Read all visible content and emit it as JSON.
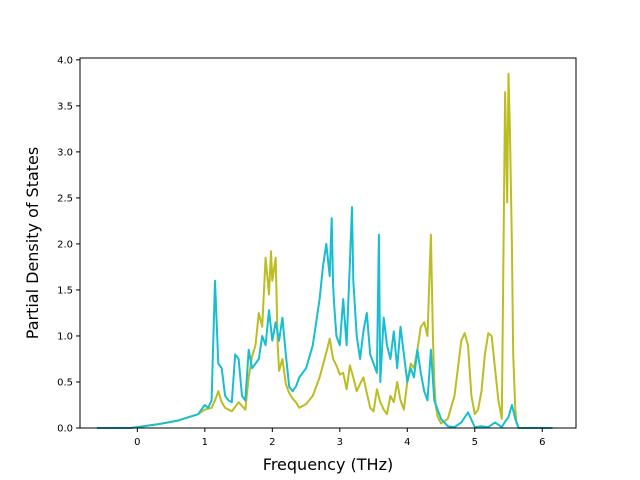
{
  "chart_data": {
    "type": "line",
    "title": "",
    "xlabel": "Frequency (THz)",
    "ylabel": "Partial Density of States",
    "xlim": [
      -0.85,
      6.5
    ],
    "ylim": [
      0.0,
      4.02
    ],
    "x_ticks": [
      0,
      1,
      2,
      3,
      4,
      5,
      6
    ],
    "y_ticks": [
      0.0,
      0.5,
      1.0,
      1.5,
      2.0,
      2.5,
      3.0,
      3.5,
      4.0
    ],
    "x_tick_labels": [
      "0",
      "1",
      "2",
      "3",
      "4",
      "5",
      "6"
    ],
    "y_tick_labels": [
      "0.0",
      "0.5",
      "1.0",
      "1.5",
      "2.0",
      "2.5",
      "3.0",
      "3.5",
      "4.0"
    ],
    "grid": false,
    "legend": "none",
    "series": [
      {
        "color": "#bcbd22",
        "x": [
          -0.6,
          -0.1,
          0.0,
          0.3,
          0.6,
          0.9,
          1.0,
          1.1,
          1.15,
          1.2,
          1.25,
          1.3,
          1.4,
          1.5,
          1.6,
          1.65,
          1.7,
          1.75,
          1.8,
          1.85,
          1.9,
          1.95,
          1.98,
          2.0,
          2.05,
          2.08,
          2.1,
          2.15,
          2.2,
          2.25,
          2.3,
          2.35,
          2.4,
          2.5,
          2.6,
          2.7,
          2.75,
          2.8,
          2.85,
          2.9,
          2.95,
          3.0,
          3.05,
          3.1,
          3.15,
          3.2,
          3.25,
          3.3,
          3.35,
          3.4,
          3.45,
          3.5,
          3.55,
          3.6,
          3.65,
          3.7,
          3.75,
          3.8,
          3.85,
          3.9,
          3.95,
          4.0,
          4.05,
          4.1,
          4.15,
          4.2,
          4.25,
          4.3,
          4.35,
          4.38,
          4.4,
          4.42,
          4.45,
          4.5,
          4.6,
          4.7,
          4.8,
          4.85,
          4.9,
          4.95,
          5.0,
          5.05,
          5.1,
          5.15,
          5.2,
          5.25,
          5.3,
          5.35,
          5.4,
          5.45,
          5.48,
          5.5,
          5.52,
          5.55,
          5.57,
          5.6,
          5.62,
          5.65,
          6.15
        ],
        "y": [
          0.0,
          0.0,
          0.01,
          0.04,
          0.08,
          0.15,
          0.2,
          0.22,
          0.3,
          0.4,
          0.28,
          0.22,
          0.18,
          0.28,
          0.2,
          0.55,
          0.78,
          0.9,
          1.25,
          1.1,
          1.85,
          1.45,
          1.92,
          1.6,
          1.85,
          0.9,
          0.62,
          0.75,
          0.48,
          0.38,
          0.32,
          0.28,
          0.22,
          0.26,
          0.35,
          0.55,
          0.68,
          0.82,
          0.97,
          0.75,
          0.68,
          0.58,
          0.6,
          0.42,
          0.68,
          0.55,
          0.4,
          0.48,
          0.55,
          0.38,
          0.22,
          0.18,
          0.42,
          0.28,
          0.2,
          0.15,
          0.35,
          0.28,
          0.5,
          0.3,
          0.2,
          0.5,
          0.7,
          0.65,
          0.85,
          1.1,
          1.15,
          1.0,
          2.1,
          1.0,
          0.5,
          0.25,
          0.12,
          0.05,
          0.1,
          0.35,
          0.95,
          1.03,
          0.9,
          0.35,
          0.15,
          0.2,
          0.4,
          0.8,
          1.03,
          1.0,
          0.65,
          0.3,
          0.1,
          3.65,
          2.45,
          3.85,
          3.25,
          2.0,
          0.8,
          0.2,
          0.05,
          0.0,
          0.0
        ]
      },
      {
        "color": "#17becf",
        "x": [
          -0.6,
          -0.1,
          0.0,
          0.3,
          0.6,
          0.9,
          1.0,
          1.05,
          1.1,
          1.15,
          1.2,
          1.25,
          1.3,
          1.35,
          1.4,
          1.45,
          1.5,
          1.55,
          1.6,
          1.65,
          1.7,
          1.75,
          1.8,
          1.85,
          1.9,
          1.95,
          2.0,
          2.05,
          2.1,
          2.15,
          2.2,
          2.25,
          2.3,
          2.35,
          2.4,
          2.5,
          2.6,
          2.7,
          2.75,
          2.8,
          2.85,
          2.88,
          2.9,
          2.92,
          2.95,
          3.0,
          3.05,
          3.1,
          3.15,
          3.18,
          3.2,
          3.25,
          3.3,
          3.35,
          3.4,
          3.45,
          3.5,
          3.55,
          3.58,
          3.6,
          3.65,
          3.7,
          3.75,
          3.8,
          3.85,
          3.9,
          3.95,
          4.0,
          4.05,
          4.1,
          4.15,
          4.2,
          4.25,
          4.3,
          4.35,
          4.4,
          4.5,
          4.6,
          4.7,
          4.8,
          4.9,
          5.0,
          5.1,
          5.2,
          5.3,
          5.4,
          5.45,
          5.5,
          5.55,
          5.6,
          5.65,
          6.15
        ],
        "y": [
          0.0,
          0.0,
          0.01,
          0.04,
          0.08,
          0.15,
          0.25,
          0.22,
          0.3,
          1.6,
          0.7,
          0.65,
          0.35,
          0.3,
          0.28,
          0.8,
          0.75,
          0.35,
          0.3,
          0.85,
          0.65,
          0.7,
          0.75,
          1.0,
          0.9,
          1.28,
          0.95,
          1.15,
          0.95,
          1.2,
          0.8,
          0.45,
          0.4,
          0.45,
          0.55,
          0.65,
          0.9,
          1.4,
          1.75,
          2.0,
          1.65,
          2.28,
          1.55,
          1.3,
          1.0,
          0.9,
          1.4,
          0.9,
          1.8,
          2.4,
          1.6,
          1.0,
          0.75,
          1.05,
          1.25,
          0.8,
          0.7,
          0.6,
          2.1,
          0.5,
          1.2,
          0.9,
          0.75,
          1.05,
          0.65,
          1.1,
          0.8,
          0.5,
          0.65,
          0.55,
          0.85,
          0.6,
          0.4,
          0.3,
          0.85,
          0.3,
          0.1,
          0.02,
          0.01,
          0.06,
          0.17,
          0.01,
          0.02,
          0.01,
          0.06,
          0.01,
          0.07,
          0.12,
          0.25,
          0.1,
          0.0,
          0.0
        ]
      }
    ]
  }
}
